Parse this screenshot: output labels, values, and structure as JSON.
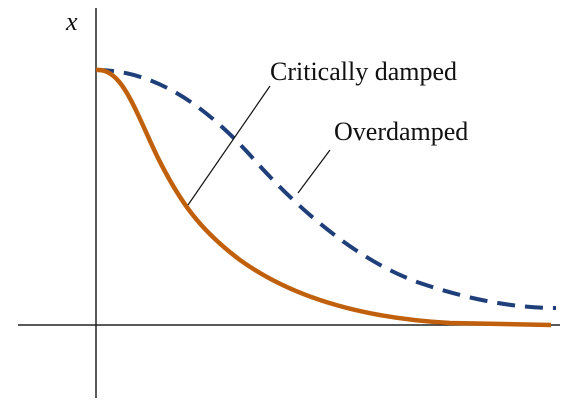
{
  "axis_label": "x",
  "labels": {
    "critically_damped": "Critically damped",
    "overdamped": "Overdamped"
  }
}
